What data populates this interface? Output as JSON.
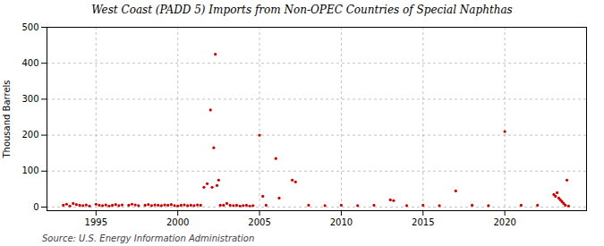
{
  "chart_data": {
    "type": "scatter",
    "title": "West Coast (PADD 5) Imports from Non-OPEC Countries of Special Naphthas",
    "ylabel": "Thousand Barrels",
    "source": "Source: U.S. Energy Information Administration",
    "color": "#cc0000",
    "x": [
      1993.0,
      1993.2,
      1993.4,
      1993.6,
      1993.8,
      1994.0,
      1994.2,
      1994.4,
      1994.6,
      1995.0,
      1995.2,
      1995.4,
      1995.6,
      1995.8,
      1996.0,
      1996.2,
      1996.4,
      1996.6,
      1997.0,
      1997.2,
      1997.4,
      1997.6,
      1998.0,
      1998.2,
      1998.4,
      1998.6,
      1998.8,
      1999.0,
      1999.2,
      1999.4,
      1999.6,
      1999.8,
      2000.0,
      2000.2,
      2000.4,
      2000.6,
      2000.8,
      2001.0,
      2001.2,
      2001.4,
      2001.6,
      2001.8,
      2002.0,
      2002.1,
      2002.2,
      2002.3,
      2002.4,
      2002.5,
      2002.6,
      2002.8,
      2003.0,
      2003.2,
      2003.4,
      2003.6,
      2003.8,
      2004.0,
      2004.2,
      2004.4,
      2004.6,
      2005.0,
      2005.2,
      2005.4,
      2006.0,
      2006.2,
      2007.0,
      2007.2,
      2008.0,
      2009.0,
      2010.0,
      2011.0,
      2012.0,
      2013.0,
      2013.2,
      2014.0,
      2015.0,
      2016.0,
      2017.0,
      2018.0,
      2019.0,
      2020.0,
      2021.0,
      2022.0,
      2023.0,
      2023.1,
      2023.2,
      2023.3,
      2023.4,
      2023.5,
      2023.6,
      2023.7,
      2023.8,
      2023.9
    ],
    "values": [
      5,
      8,
      3,
      10,
      7,
      5,
      4,
      6,
      3,
      8,
      5,
      4,
      6,
      3,
      5,
      7,
      4,
      6,
      5,
      8,
      6,
      4,
      5,
      7,
      4,
      6,
      5,
      4,
      6,
      5,
      7,
      4,
      3,
      5,
      6,
      4,
      5,
      4,
      6,
      5,
      55,
      65,
      270,
      55,
      165,
      425,
      60,
      75,
      5,
      5,
      10,
      5,
      4,
      5,
      3,
      4,
      5,
      3,
      4,
      200,
      30,
      5,
      135,
      25,
      75,
      70,
      5,
      4,
      5,
      4,
      5,
      20,
      18,
      4,
      5,
      4,
      45,
      5,
      4,
      210,
      5,
      5,
      35,
      30,
      40,
      25,
      20,
      15,
      10,
      5,
      75,
      3
    ],
    "xlim": [
      1992.0,
      2025.0
    ],
    "ylim": [
      -10,
      500
    ],
    "xticks": [
      1995,
      2000,
      2005,
      2010,
      2015,
      2020
    ],
    "yticks": [
      0,
      100,
      200,
      300,
      400,
      500
    ],
    "grid": true
  }
}
